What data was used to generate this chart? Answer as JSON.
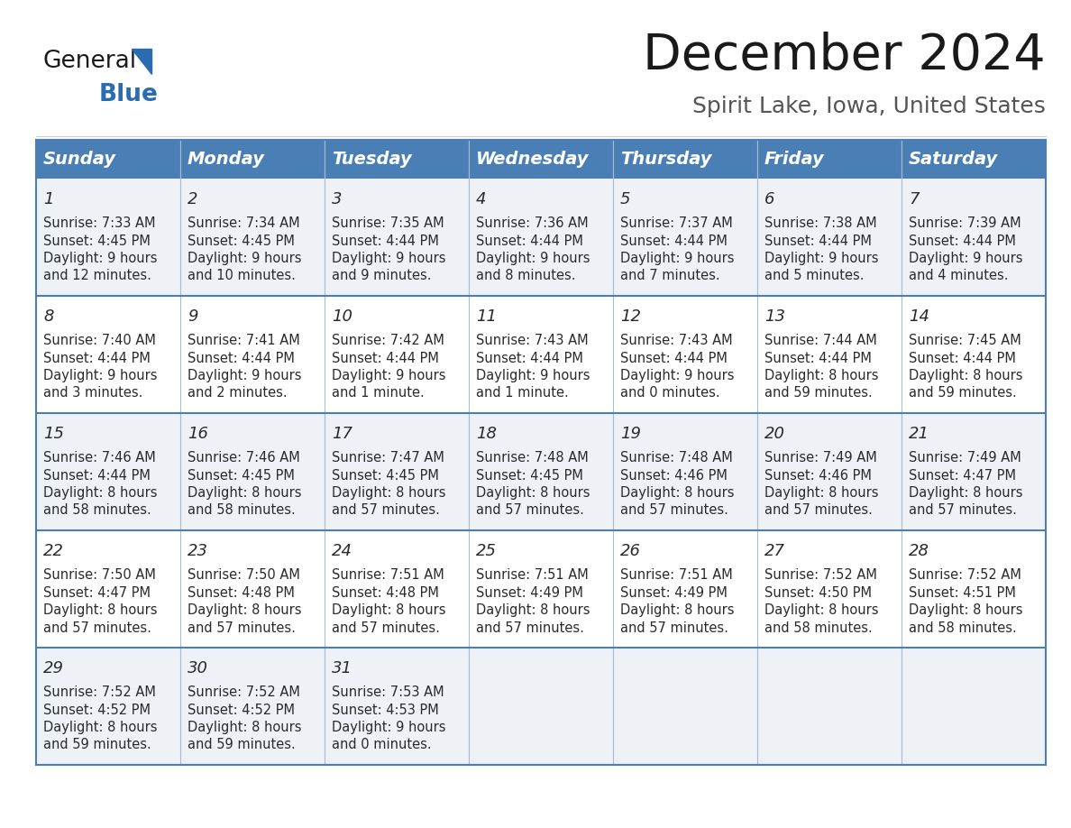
{
  "title": "December 2024",
  "subtitle": "Spirit Lake, Iowa, United States",
  "header_bg": "#4a7fb5",
  "header_text_color": "#ffffff",
  "cell_bg_odd": "#eef2f7",
  "cell_bg_even": "#ffffff",
  "border_color": "#4a7fb5",
  "sep_color": "#aabbcc",
  "day_headers": [
    "Sunday",
    "Monday",
    "Tuesday",
    "Wednesday",
    "Thursday",
    "Friday",
    "Saturday"
  ],
  "calendar_data": [
    [
      {
        "day": "1",
        "sunrise": "7:33 AM",
        "sunset": "4:45 PM",
        "daylight_line1": "Daylight: 9 hours",
        "daylight_line2": "and 12 minutes."
      },
      {
        "day": "2",
        "sunrise": "7:34 AM",
        "sunset": "4:45 PM",
        "daylight_line1": "Daylight: 9 hours",
        "daylight_line2": "and 10 minutes."
      },
      {
        "day": "3",
        "sunrise": "7:35 AM",
        "sunset": "4:44 PM",
        "daylight_line1": "Daylight: 9 hours",
        "daylight_line2": "and 9 minutes."
      },
      {
        "day": "4",
        "sunrise": "7:36 AM",
        "sunset": "4:44 PM",
        "daylight_line1": "Daylight: 9 hours",
        "daylight_line2": "and 8 minutes."
      },
      {
        "day": "5",
        "sunrise": "7:37 AM",
        "sunset": "4:44 PM",
        "daylight_line1": "Daylight: 9 hours",
        "daylight_line2": "and 7 minutes."
      },
      {
        "day": "6",
        "sunrise": "7:38 AM",
        "sunset": "4:44 PM",
        "daylight_line1": "Daylight: 9 hours",
        "daylight_line2": "and 5 minutes."
      },
      {
        "day": "7",
        "sunrise": "7:39 AM",
        "sunset": "4:44 PM",
        "daylight_line1": "Daylight: 9 hours",
        "daylight_line2": "and 4 minutes."
      }
    ],
    [
      {
        "day": "8",
        "sunrise": "7:40 AM",
        "sunset": "4:44 PM",
        "daylight_line1": "Daylight: 9 hours",
        "daylight_line2": "and 3 minutes."
      },
      {
        "day": "9",
        "sunrise": "7:41 AM",
        "sunset": "4:44 PM",
        "daylight_line1": "Daylight: 9 hours",
        "daylight_line2": "and 2 minutes."
      },
      {
        "day": "10",
        "sunrise": "7:42 AM",
        "sunset": "4:44 PM",
        "daylight_line1": "Daylight: 9 hours",
        "daylight_line2": "and 1 minute."
      },
      {
        "day": "11",
        "sunrise": "7:43 AM",
        "sunset": "4:44 PM",
        "daylight_line1": "Daylight: 9 hours",
        "daylight_line2": "and 1 minute."
      },
      {
        "day": "12",
        "sunrise": "7:43 AM",
        "sunset": "4:44 PM",
        "daylight_line1": "Daylight: 9 hours",
        "daylight_line2": "and 0 minutes."
      },
      {
        "day": "13",
        "sunrise": "7:44 AM",
        "sunset": "4:44 PM",
        "daylight_line1": "Daylight: 8 hours",
        "daylight_line2": "and 59 minutes."
      },
      {
        "day": "14",
        "sunrise": "7:45 AM",
        "sunset": "4:44 PM",
        "daylight_line1": "Daylight: 8 hours",
        "daylight_line2": "and 59 minutes."
      }
    ],
    [
      {
        "day": "15",
        "sunrise": "7:46 AM",
        "sunset": "4:44 PM",
        "daylight_line1": "Daylight: 8 hours",
        "daylight_line2": "and 58 minutes."
      },
      {
        "day": "16",
        "sunrise": "7:46 AM",
        "sunset": "4:45 PM",
        "daylight_line1": "Daylight: 8 hours",
        "daylight_line2": "and 58 minutes."
      },
      {
        "day": "17",
        "sunrise": "7:47 AM",
        "sunset": "4:45 PM",
        "daylight_line1": "Daylight: 8 hours",
        "daylight_line2": "and 57 minutes."
      },
      {
        "day": "18",
        "sunrise": "7:48 AM",
        "sunset": "4:45 PM",
        "daylight_line1": "Daylight: 8 hours",
        "daylight_line2": "and 57 minutes."
      },
      {
        "day": "19",
        "sunrise": "7:48 AM",
        "sunset": "4:46 PM",
        "daylight_line1": "Daylight: 8 hours",
        "daylight_line2": "and 57 minutes."
      },
      {
        "day": "20",
        "sunrise": "7:49 AM",
        "sunset": "4:46 PM",
        "daylight_line1": "Daylight: 8 hours",
        "daylight_line2": "and 57 minutes."
      },
      {
        "day": "21",
        "sunrise": "7:49 AM",
        "sunset": "4:47 PM",
        "daylight_line1": "Daylight: 8 hours",
        "daylight_line2": "and 57 minutes."
      }
    ],
    [
      {
        "day": "22",
        "sunrise": "7:50 AM",
        "sunset": "4:47 PM",
        "daylight_line1": "Daylight: 8 hours",
        "daylight_line2": "and 57 minutes."
      },
      {
        "day": "23",
        "sunrise": "7:50 AM",
        "sunset": "4:48 PM",
        "daylight_line1": "Daylight: 8 hours",
        "daylight_line2": "and 57 minutes."
      },
      {
        "day": "24",
        "sunrise": "7:51 AM",
        "sunset": "4:48 PM",
        "daylight_line1": "Daylight: 8 hours",
        "daylight_line2": "and 57 minutes."
      },
      {
        "day": "25",
        "sunrise": "7:51 AM",
        "sunset": "4:49 PM",
        "daylight_line1": "Daylight: 8 hours",
        "daylight_line2": "and 57 minutes."
      },
      {
        "day": "26",
        "sunrise": "7:51 AM",
        "sunset": "4:49 PM",
        "daylight_line1": "Daylight: 8 hours",
        "daylight_line2": "and 57 minutes."
      },
      {
        "day": "27",
        "sunrise": "7:52 AM",
        "sunset": "4:50 PM",
        "daylight_line1": "Daylight: 8 hours",
        "daylight_line2": "and 58 minutes."
      },
      {
        "day": "28",
        "sunrise": "7:52 AM",
        "sunset": "4:51 PM",
        "daylight_line1": "Daylight: 8 hours",
        "daylight_line2": "and 58 minutes."
      }
    ],
    [
      {
        "day": "29",
        "sunrise": "7:52 AM",
        "sunset": "4:52 PM",
        "daylight_line1": "Daylight: 8 hours",
        "daylight_line2": "and 59 minutes."
      },
      {
        "day": "30",
        "sunrise": "7:52 AM",
        "sunset": "4:52 PM",
        "daylight_line1": "Daylight: 8 hours",
        "daylight_line2": "and 59 minutes."
      },
      {
        "day": "31",
        "sunrise": "7:53 AM",
        "sunset": "4:53 PM",
        "daylight_line1": "Daylight: 9 hours",
        "daylight_line2": "and 0 minutes."
      },
      null,
      null,
      null,
      null
    ]
  ],
  "logo_text_general": "General",
  "logo_text_blue": "Blue",
  "logo_color_general": "#1a1a1a",
  "logo_color_blue": "#2b6cb0",
  "title_fontsize": 40,
  "subtitle_fontsize": 18,
  "header_fontsize": 14,
  "day_num_fontsize": 13,
  "cell_text_fontsize": 10.5
}
